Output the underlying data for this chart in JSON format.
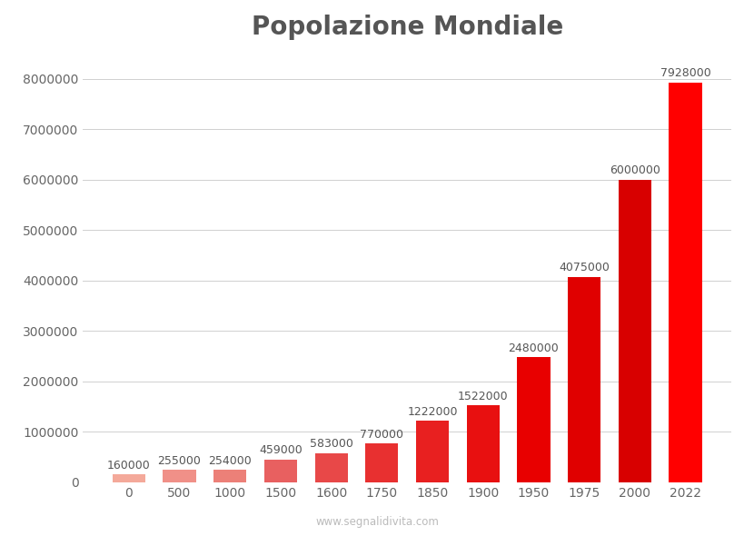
{
  "title": "Popolazione Mondiale",
  "categories": [
    "0",
    "500",
    "1000",
    "1500",
    "1600",
    "1750",
    "1850",
    "1900",
    "1950",
    "1975",
    "2000",
    "2022"
  ],
  "values": [
    160000,
    255000,
    254000,
    459000,
    583000,
    770000,
    1222000,
    1522000,
    2480000,
    4075000,
    6000000,
    7928000
  ],
  "bar_colors": [
    "#f4a99a",
    "#f09088",
    "#ec8078",
    "#e86060",
    "#e84848",
    "#e83030",
    "#e82020",
    "#e81010",
    "#e80000",
    "#e00000",
    "#d80000",
    "#ff0000"
  ],
  "ylim": [
    0,
    8500000
  ],
  "watermark": "www.segnalidivita.com",
  "background_color": "#ffffff",
  "grid_color": "#d0d0d0",
  "title_color": "#555555",
  "title_fontsize": 20,
  "label_fontsize": 9,
  "tick_fontsize": 10,
  "bar_width": 0.65,
  "yticks": [
    0,
    1000000,
    2000000,
    3000000,
    4000000,
    5000000,
    6000000,
    7000000,
    8000000
  ]
}
